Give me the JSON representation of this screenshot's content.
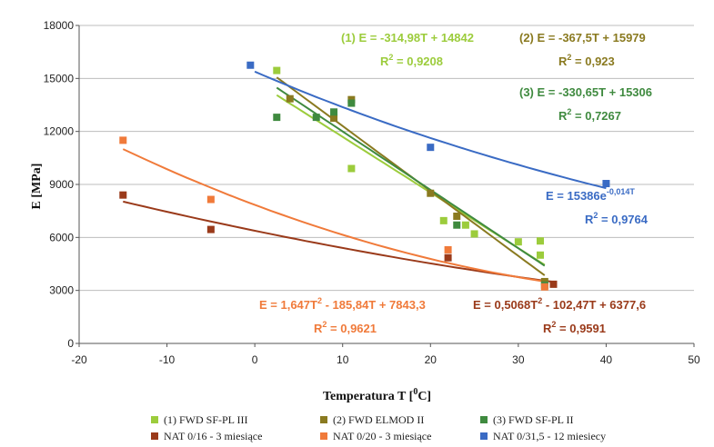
{
  "chart_data": {
    "type": "scatter",
    "xlabel": "Temperatura T [",
    "xlabel_unit": "0",
    "xlabel_tail": "C]",
    "ylabel": "E [MPa]",
    "xlim": [
      -20,
      50
    ],
    "ylim": [
      0,
      18000
    ],
    "x_ticks": [
      -20,
      -10,
      0,
      10,
      20,
      30,
      40,
      50
    ],
    "y_ticks": [
      0,
      3000,
      6000,
      9000,
      12000,
      15000,
      18000
    ],
    "grid": "horizontal",
    "legend_position": "bottom",
    "series": [
      {
        "name": "(1) FWD SF-PL III",
        "color": "#9ccc3c",
        "points": [
          [
            2.5,
            15450
          ],
          [
            11,
            9900
          ],
          [
            21.5,
            6950
          ],
          [
            24,
            6700
          ],
          [
            25,
            6200
          ],
          [
            30,
            5750
          ],
          [
            32.5,
            5800
          ],
          [
            32.5,
            5000
          ]
        ],
        "trend": {
          "kind": "linear",
          "a": -314.98,
          "b": 14842,
          "x_range": [
            2.5,
            33
          ]
        },
        "equation": "(1) E = -314,98T + 14842",
        "r2_prefix": "R",
        "r2_exp": "2",
        "r2_value": " = 0,9208"
      },
      {
        "name": "(2) FWD ELMOD II",
        "color": "#8a7a20",
        "points": [
          [
            4,
            13850
          ],
          [
            9,
            12750
          ],
          [
            11,
            13800
          ],
          [
            20,
            8500
          ],
          [
            23,
            7200
          ],
          [
            33,
            3500
          ]
        ],
        "trend": {
          "kind": "linear",
          "a": -367.5,
          "b": 15979,
          "x_range": [
            2.5,
            33
          ]
        },
        "equation": "(2) E = -367,5T + 15979",
        "r2_prefix": "R",
        "r2_exp": "2",
        "r2_value": " = 0,923"
      },
      {
        "name": "(3) FWD SF-PL II",
        "color": "#3f8a3f",
        "points": [
          [
            2.5,
            12800
          ],
          [
            7,
            12800
          ],
          [
            9,
            13100
          ],
          [
            11,
            13600
          ],
          [
            23,
            6700
          ],
          [
            33,
            3300
          ]
        ],
        "trend": {
          "kind": "linear",
          "a": -330.65,
          "b": 15306,
          "x_range": [
            2.5,
            33
          ]
        },
        "equation": "(3) E = -330,65T + 15306",
        "r2_prefix": "R",
        "r2_exp": "2",
        "r2_value": " = 0,7267"
      },
      {
        "name": "NAT 0/16 - 3 miesiące",
        "color": "#9a3a1a",
        "points": [
          [
            -15,
            8400
          ],
          [
            -5,
            6450
          ],
          [
            22,
            4850
          ],
          [
            34,
            3350
          ]
        ],
        "trend": {
          "kind": "poly2",
          "a": 0.5068,
          "b": -102.47,
          "c": 6377.6,
          "x_range": [
            -15,
            34
          ]
        },
        "equation": "E = 0,5068T",
        "eq_exp": "2",
        "eq_tail": " - 102,47T + 6377,6",
        "r2_prefix": "R",
        "r2_exp": "2",
        "r2_value": " = 0,9591"
      },
      {
        "name": "NAT 0/20 - 3 miesiące",
        "color": "#f07a3a",
        "points": [
          [
            -15,
            11500
          ],
          [
            -5,
            8150
          ],
          [
            22,
            5300
          ],
          [
            33,
            3200
          ]
        ],
        "trend": {
          "kind": "poly2",
          "a": 1.647,
          "b": -185.84,
          "c": 7843.3,
          "x_range": [
            -15,
            33
          ]
        },
        "equation": "E = 1,647T",
        "eq_exp": "2",
        "eq_tail": " - 185,84T + 7843,3",
        "r2_prefix": "R",
        "r2_exp": "2",
        "r2_value": " = 0,9621"
      },
      {
        "name": "NAT 0/31,5 - 12 miesiecy",
        "color": "#3a6bc4",
        "points": [
          [
            -0.5,
            15750
          ],
          [
            20,
            11100
          ],
          [
            40,
            9050
          ]
        ],
        "trend": {
          "kind": "exp",
          "a": 15386,
          "b": -0.014,
          "x_range": [
            0,
            40
          ]
        },
        "equation": "E = 15386e",
        "eq_exp": "-0,014T",
        "eq_tail": "",
        "r2_prefix": "R",
        "r2_exp": "2",
        "r2_value": " = 0,9764"
      }
    ]
  }
}
